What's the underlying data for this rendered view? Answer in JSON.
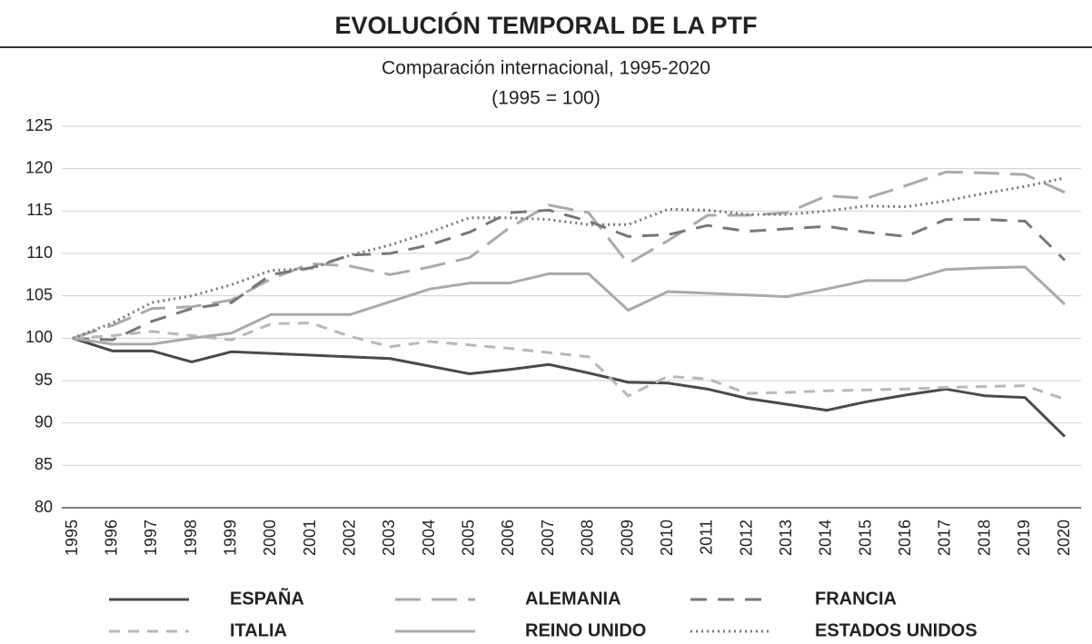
{
  "chart_data": {
    "type": "line",
    "title": "EVOLUCIÓN TEMPORAL DE LA PTF",
    "subtitle": "Comparación internacional, 1995-2020",
    "note": "(1995 = 100)",
    "categories": [
      "1995",
      "1996",
      "1997",
      "1998",
      "1999",
      "2000",
      "2001",
      "2002",
      "2003",
      "2004",
      "2005",
      "2006",
      "2007",
      "2008",
      "2009",
      "2010",
      "2011",
      "2012",
      "2013",
      "2014",
      "2015",
      "2016",
      "2017",
      "2018",
      "2019",
      "2020"
    ],
    "ylim": [
      80,
      125
    ],
    "yticks": [
      80,
      85,
      90,
      95,
      100,
      105,
      110,
      115,
      120,
      125
    ],
    "grid": true,
    "legend": "bottom",
    "series": [
      {
        "name": "ESPAÑA",
        "color": "#4a4a4a",
        "dash": "solid",
        "values": [
          100,
          98.5,
          98.5,
          97.2,
          98.4,
          98.2,
          98.0,
          97.8,
          97.6,
          96.7,
          95.8,
          96.3,
          96.9,
          95.9,
          94.8,
          94.7,
          94.0,
          92.9,
          92.2,
          91.5,
          92.5,
          93.3,
          94.0,
          93.2,
          93.0,
          88.4
        ]
      },
      {
        "name": "ALEMANIA",
        "color": "#aaaaaa",
        "dash": "long-dash",
        "values": [
          100,
          101.5,
          103.5,
          103.7,
          104.5,
          107.0,
          108.8,
          108.5,
          107.5,
          108.4,
          109.5,
          113.0,
          115.7,
          114.8,
          108.8,
          111.5,
          114.5,
          114.5,
          114.8,
          116.8,
          116.5,
          118.0,
          119.6,
          119.5,
          119.3,
          117.2
        ]
      },
      {
        "name": "FRANCIA",
        "color": "#777777",
        "dash": "dash",
        "values": [
          100,
          99.8,
          102.0,
          103.5,
          104.2,
          107.5,
          108.3,
          109.8,
          110.0,
          111.0,
          112.5,
          114.8,
          115.1,
          113.8,
          112.0,
          112.2,
          113.3,
          112.6,
          112.9,
          113.2,
          112.5,
          112.0,
          114.0,
          114.0,
          113.8,
          109.2
        ]
      },
      {
        "name": "ITALIA",
        "color": "#b8b8b8",
        "dash": "short-dash",
        "values": [
          100,
          100.3,
          100.8,
          100.3,
          99.8,
          101.7,
          101.8,
          100.2,
          99.0,
          99.6,
          99.2,
          98.8,
          98.3,
          97.8,
          93.2,
          95.5,
          95.2,
          93.5,
          93.6,
          93.8,
          93.9,
          94.0,
          94.2,
          94.3,
          94.4,
          92.8
        ]
      },
      {
        "name": "REINO UNIDO",
        "color": "#aaaaaa",
        "dash": "solid",
        "values": [
          100,
          99.3,
          99.3,
          100.0,
          100.6,
          102.8,
          102.8,
          102.8,
          104.3,
          105.8,
          106.5,
          106.5,
          107.6,
          107.6,
          103.3,
          105.5,
          105.3,
          105.1,
          104.9,
          105.8,
          106.8,
          106.8,
          108.1,
          108.3,
          108.4,
          104.0
        ]
      },
      {
        "name": "ESTADOS UNIDOS",
        "color": "#777777",
        "dash": "dotted",
        "values": [
          100,
          101.8,
          104.2,
          105.0,
          106.3,
          108.0,
          108.2,
          109.8,
          111.0,
          112.5,
          114.2,
          114.2,
          114.0,
          113.4,
          113.4,
          115.2,
          115.1,
          114.6,
          114.6,
          115.0,
          115.6,
          115.5,
          116.2,
          117.1,
          117.9,
          118.9
        ]
      }
    ]
  }
}
